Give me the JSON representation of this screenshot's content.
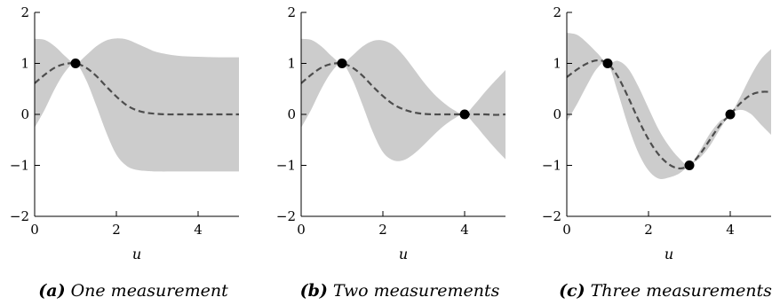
{
  "chart_data": [
    {
      "type": "line",
      "caption_letter": "(a)",
      "caption_text": "One measurement",
      "xlabel": "u",
      "xlim": [
        0,
        5
      ],
      "ylim": [
        -2,
        2
      ],
      "xticks": [
        0,
        2,
        4
      ],
      "yticks": [
        -2,
        -1,
        0,
        1,
        2
      ],
      "measurements": [
        {
          "x": 1,
          "y": 1
        }
      ],
      "mean": {
        "x": [
          0,
          0.25,
          0.5,
          0.75,
          1,
          1.25,
          1.5,
          1.75,
          2,
          2.25,
          2.5,
          2.75,
          3,
          3.25,
          3.5,
          4,
          4.5,
          5
        ],
        "y": [
          0.61,
          0.78,
          0.92,
          0.99,
          1.0,
          0.92,
          0.76,
          0.55,
          0.35,
          0.18,
          0.08,
          0.03,
          0.01,
          0.0,
          0.0,
          0.0,
          0.0,
          0.0
        ]
      },
      "band_upper": {
        "x": [
          0,
          0.25,
          0.5,
          0.75,
          1,
          1.25,
          1.5,
          1.75,
          2,
          2.25,
          2.5,
          2.75,
          3,
          3.5,
          4,
          4.5,
          5
        ],
        "y": [
          1.48,
          1.46,
          1.33,
          1.14,
          1.0,
          1.15,
          1.33,
          1.45,
          1.49,
          1.47,
          1.39,
          1.3,
          1.22,
          1.15,
          1.13,
          1.12,
          1.12
        ]
      },
      "band_lower": {
        "x": [
          0,
          0.25,
          0.5,
          0.75,
          1,
          1.25,
          1.5,
          1.75,
          2,
          2.25,
          2.5,
          2.75,
          3,
          3.5,
          4,
          4.5,
          5
        ],
        "y": [
          -0.26,
          0.1,
          0.51,
          0.84,
          1.0,
          0.69,
          0.19,
          -0.35,
          -0.79,
          -1.01,
          -1.09,
          -1.11,
          -1.12,
          -1.12,
          -1.12,
          -1.12,
          -1.12
        ]
      },
      "band_color": "#cccccc",
      "line_color": "#4d4d4d",
      "marker_color": "#000000"
    },
    {
      "type": "line",
      "caption_letter": "(b)",
      "caption_text": "Two measurements",
      "xlabel": "u",
      "xlim": [
        0,
        5
      ],
      "ylim": [
        -2,
        2
      ],
      "xticks": [
        0,
        2,
        4
      ],
      "yticks": [
        -2,
        -1,
        0,
        1,
        2
      ],
      "measurements": [
        {
          "x": 1,
          "y": 1
        },
        {
          "x": 4,
          "y": 0
        }
      ],
      "mean": {
        "x": [
          0,
          0.25,
          0.5,
          0.75,
          1,
          1.25,
          1.5,
          1.75,
          2,
          2.25,
          2.5,
          2.75,
          3,
          3.25,
          3.5,
          3.75,
          4,
          4.25,
          4.5,
          4.75,
          5
        ],
        "y": [
          0.61,
          0.78,
          0.92,
          0.99,
          1.0,
          0.92,
          0.76,
          0.55,
          0.36,
          0.2,
          0.1,
          0.04,
          0.01,
          0.0,
          0.0,
          0.0,
          0.0,
          0.0,
          0.0,
          -0.01,
          0.0
        ]
      },
      "band_upper": {
        "x": [
          0,
          0.25,
          0.5,
          0.75,
          1,
          1.25,
          1.5,
          1.75,
          2,
          2.25,
          2.5,
          2.75,
          3,
          3.25,
          3.5,
          3.75,
          4,
          4.25,
          4.5,
          4.75,
          5
        ],
        "y": [
          1.48,
          1.46,
          1.33,
          1.14,
          1.0,
          1.15,
          1.33,
          1.44,
          1.45,
          1.36,
          1.16,
          0.9,
          0.63,
          0.4,
          0.22,
          0.08,
          0.0,
          0.2,
          0.44,
          0.66,
          0.87
        ]
      },
      "band_lower": {
        "x": [
          0,
          0.25,
          0.5,
          0.75,
          1,
          1.25,
          1.5,
          1.75,
          2,
          2.25,
          2.5,
          2.75,
          3,
          3.25,
          3.5,
          3.75,
          4,
          4.25,
          4.5,
          4.75,
          5
        ],
        "y": [
          -0.26,
          0.1,
          0.51,
          0.84,
          1.0,
          0.69,
          0.19,
          -0.34,
          -0.74,
          -0.9,
          -0.9,
          -0.78,
          -0.6,
          -0.4,
          -0.22,
          -0.08,
          0.0,
          -0.2,
          -0.44,
          -0.67,
          -0.88
        ]
      },
      "band_color": "#cccccc",
      "line_color": "#4d4d4d",
      "marker_color": "#000000"
    },
    {
      "type": "line",
      "caption_letter": "(c)",
      "caption_text": "Three measurements",
      "xlabel": "u",
      "xlim": [
        0,
        5
      ],
      "ylim": [
        -2,
        2
      ],
      "xticks": [
        0,
        2,
        4
      ],
      "yticks": [
        -2,
        -1,
        0,
        1,
        2
      ],
      "measurements": [
        {
          "x": 1,
          "y": 1
        },
        {
          "x": 3,
          "y": -1
        },
        {
          "x": 4,
          "y": 0
        }
      ],
      "mean": {
        "x": [
          0,
          0.25,
          0.5,
          0.75,
          1,
          1.25,
          1.5,
          1.75,
          2,
          2.25,
          2.5,
          2.75,
          3,
          3.25,
          3.5,
          3.75,
          4,
          4.25,
          4.5,
          4.75,
          5
        ],
        "y": [
          0.73,
          0.88,
          1.0,
          1.06,
          1.0,
          0.74,
          0.34,
          -0.1,
          -0.49,
          -0.79,
          -0.98,
          -1.06,
          -1.0,
          -0.79,
          -0.5,
          -0.21,
          0.0,
          0.22,
          0.38,
          0.44,
          0.44
        ]
      },
      "band_upper": {
        "x": [
          0,
          0.25,
          0.5,
          0.75,
          1,
          1.25,
          1.5,
          1.75,
          2,
          2.25,
          2.5,
          2.75,
          3,
          3.25,
          3.5,
          3.75,
          4,
          4.25,
          4.5,
          4.75,
          5
        ],
        "y": [
          1.6,
          1.56,
          1.4,
          1.2,
          1.0,
          1.05,
          0.9,
          0.55,
          0.12,
          -0.3,
          -0.62,
          -0.86,
          -1.0,
          -0.72,
          -0.38,
          -0.13,
          0.0,
          0.35,
          0.75,
          1.08,
          1.28
        ]
      },
      "band_lower": {
        "x": [
          0,
          0.25,
          0.5,
          0.75,
          1,
          1.25,
          1.5,
          1.75,
          2,
          2.25,
          2.5,
          2.75,
          3,
          3.25,
          3.5,
          3.75,
          4,
          4.25,
          4.5,
          4.75,
          5
        ],
        "y": [
          -0.14,
          0.2,
          0.58,
          0.91,
          1.0,
          0.43,
          -0.22,
          -0.75,
          -1.1,
          -1.26,
          -1.24,
          -1.16,
          -1.0,
          -0.86,
          -0.62,
          -0.29,
          0.0,
          0.09,
          0.01,
          -0.2,
          -0.4
        ]
      },
      "band_color": "#cccccc",
      "line_color": "#4d4d4d",
      "marker_color": "#000000"
    }
  ]
}
